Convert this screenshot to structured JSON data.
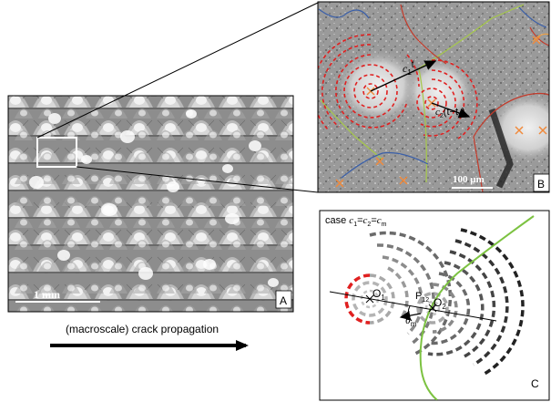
{
  "panel_a": {
    "letter": "A",
    "scale_bar": "1 mm"
  },
  "panel_b": {
    "letter": "B",
    "scale_bar": "100 µm",
    "label_c1": "c",
    "label_c1_sub": "1",
    "label_c2": "c",
    "label_c2_sub": "2",
    "label_c2_tail": "(t−t",
    "label_c2_tail_sub": "2",
    "label_c2_close": ")"
  },
  "panel_c": {
    "letter": "C",
    "case_prefix": "case ",
    "case_c": "c",
    "case_eq": "=",
    "case_sub1": "1",
    "case_sub2": "2",
    "case_subm": "m",
    "o1": "O",
    "o1_sub": "1",
    "o2": "O",
    "o2_sub": "2",
    "p_label": "P",
    "p_sub": "12",
    "theta_label": "θ",
    "theta_sub": "m"
  },
  "caption": "(macroscale) crack propagation",
  "colors": {
    "frame": "#000000",
    "red_circles": "#e02020",
    "green_boundary": "#7cc241",
    "blue_boundary": "#3a5fa8",
    "orange_marker": "#f08a3c"
  }
}
